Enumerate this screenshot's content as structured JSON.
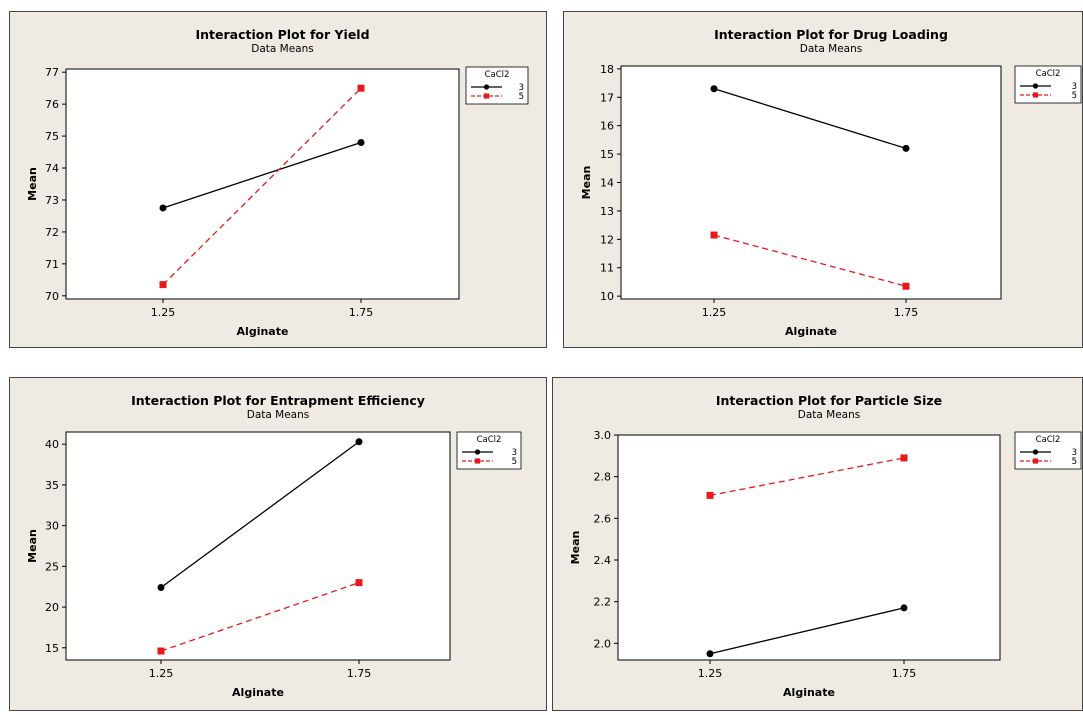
{
  "chart_data": [
    {
      "type": "line",
      "title": "Interaction Plot for Yield",
      "subtitle": "Data Means",
      "xlabel": "Alginate",
      "ylabel": "Mean",
      "categories": [
        "1.25",
        "1.75"
      ],
      "ylim": [
        69.9,
        77.1
      ],
      "yticks": [
        "70",
        "71",
        "72",
        "73",
        "74",
        "75",
        "76",
        "77"
      ],
      "legend_title": "CaCl2",
      "series": [
        {
          "name": "3",
          "values": [
            72.75,
            74.8
          ]
        },
        {
          "name": "5",
          "values": [
            70.35,
            76.5
          ]
        }
      ]
    },
    {
      "type": "line",
      "title": "Interaction Plot for Drug Loading",
      "subtitle": "Data Means",
      "xlabel": "Alginate",
      "ylabel": "Mean",
      "categories": [
        "1.25",
        "1.75"
      ],
      "ylim": [
        9.9,
        18.1
      ],
      "yticks": [
        "10",
        "11",
        "12",
        "13",
        "14",
        "15",
        "16",
        "17",
        "18"
      ],
      "legend_title": "CaCl2",
      "series": [
        {
          "name": "3",
          "values": [
            17.3,
            15.2
          ]
        },
        {
          "name": "5",
          "values": [
            12.15,
            10.35
          ]
        }
      ]
    },
    {
      "type": "line",
      "title": "Interaction Plot for Entrapment Efficiency",
      "subtitle": "Data Means",
      "xlabel": "Alginate",
      "ylabel": "Mean",
      "categories": [
        "1.25",
        "1.75"
      ],
      "ylim": [
        13.5,
        41.5
      ],
      "yticks": [
        "15",
        "20",
        "25",
        "30",
        "35",
        "40"
      ],
      "legend_title": "CaCl2",
      "series": [
        {
          "name": "3",
          "values": [
            22.4,
            40.3
          ]
        },
        {
          "name": "5",
          "values": [
            14.6,
            23.0
          ]
        }
      ]
    },
    {
      "type": "line",
      "title": "Interaction Plot for Particle Size",
      "subtitle": "Data Means",
      "xlabel": "Alginate",
      "ylabel": "Mean",
      "categories": [
        "1.25",
        "1.75"
      ],
      "ylim": [
        1.92,
        3.0
      ],
      "yticks": [
        "2.0",
        "2.2",
        "2.4",
        "2.6",
        "2.8",
        "3.0"
      ],
      "legend_title": "CaCl2",
      "series": [
        {
          "name": "3",
          "values": [
            1.95,
            2.17
          ]
        },
        {
          "name": "5",
          "values": [
            2.71,
            2.89
          ]
        }
      ]
    }
  ],
  "colors": {
    "panel_background": "#efebe2",
    "plot_background": "#ffffff",
    "frame": "#000000",
    "series": [
      "#000000",
      "#e8191b"
    ]
  }
}
